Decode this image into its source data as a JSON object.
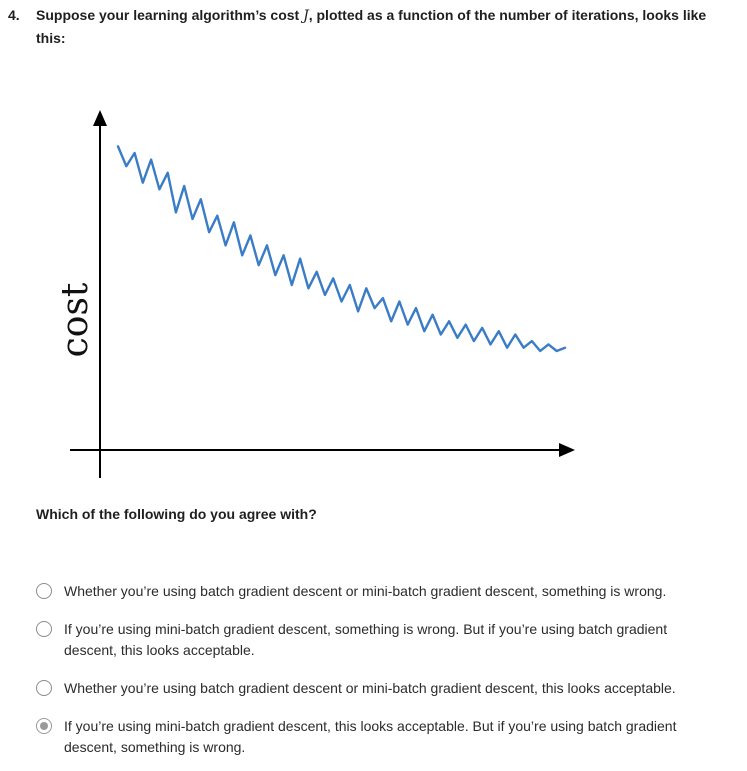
{
  "question": {
    "number": "4.",
    "text_before": "Suppose your learning algorithm’s cost ",
    "symbol": "J",
    "text_after": ", plotted as a function of the number of iterations, looks like this:",
    "prompt": "Which of the following do you agree with?"
  },
  "chart_data": {
    "type": "line",
    "ylabel": "cost",
    "xlabel": "",
    "description_values": [
      9.2,
      8.6,
      9.0,
      8.1,
      8.8,
      7.9,
      8.4,
      7.2,
      8.0,
      7.0,
      7.6,
      6.6,
      7.1,
      6.2,
      6.9,
      5.9,
      6.5,
      5.6,
      6.2,
      5.3,
      5.9,
      5.0,
      5.8,
      4.9,
      5.4,
      4.7,
      5.2,
      4.5,
      5.0,
      4.2,
      4.9,
      4.3,
      4.6,
      3.9,
      4.5,
      3.8,
      4.3,
      3.6,
      4.1,
      3.5,
      3.9,
      3.4,
      3.8,
      3.3,
      3.7,
      3.2,
      3.6,
      3.1,
      3.5,
      3.1,
      3.3,
      3.0,
      3.2,
      3.0,
      3.1
    ],
    "line_color": "#3a7cc6",
    "axis_color": "#000000"
  },
  "options": [
    {
      "label": "Whether you’re using batch gradient descent or mini-batch gradient descent, something is wrong.",
      "selected": false
    },
    {
      "label": "If you’re using mini-batch gradient descent, something is wrong. But if you’re using batch gradient descent, this looks acceptable.",
      "selected": false
    },
    {
      "label": "Whether you’re using batch gradient descent or mini-batch gradient descent, this looks acceptable.",
      "selected": false
    },
    {
      "label": "If you’re using mini-batch gradient descent, this looks acceptable. But if you’re using batch gradient descent, something is wrong.",
      "selected": true
    }
  ]
}
